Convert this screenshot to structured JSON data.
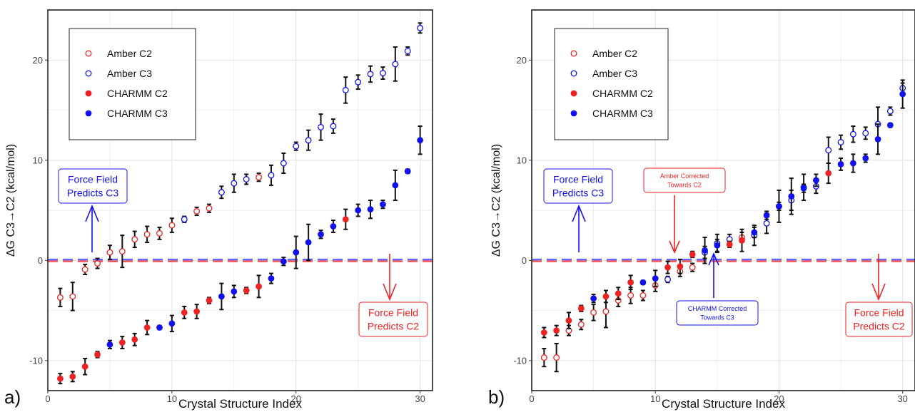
{
  "colors": {
    "amber": "#ee2222",
    "charmm_c2": "#ee2222",
    "charmm_c3": "#1111ee",
    "amber_c3": "#1111ee",
    "zero_line_red": "#ff5555",
    "zero_line_blue": "#6666ff",
    "grid": "#e4e4e4",
    "errorbar": "#111111"
  },
  "chart_data": [
    {
      "type": "scatter",
      "panel_label": "a)",
      "xlabel": "Crystal Structure Index",
      "ylabel": "ΔG C3→C2 (kcal/mol)",
      "xlim": [
        0,
        31
      ],
      "ylim": [
        -13,
        25
      ],
      "xticks": [
        0,
        10,
        20,
        30
      ],
      "yticks": [
        -10,
        0,
        10,
        20
      ],
      "grid": true,
      "legend": {
        "placement": "top-left",
        "entries": [
          {
            "label": "Amber C2",
            "marker": "open",
            "color": "#ee2222"
          },
          {
            "label": "Amber C3",
            "marker": "open",
            "color": "#1111ee"
          },
          {
            "label": "CHARMM C2",
            "marker": "filled",
            "color": "#ee2222"
          },
          {
            "label": "CHARMM C3",
            "marker": "filled",
            "color": "#1111ee"
          }
        ]
      },
      "reference_line_y": 0,
      "series": [
        {
          "name": "Amber C2",
          "marker": "open",
          "color": "#ee2222",
          "points": [
            [
              1,
              -3.7,
              0.9
            ],
            [
              2,
              -3.6,
              1.4
            ],
            [
              3,
              -0.9,
              0.5
            ],
            [
              4,
              -0.3,
              0.5
            ],
            [
              5,
              0.8,
              0.7
            ],
            [
              6,
              0.9,
              1.6
            ],
            [
              7,
              2.1,
              0.8
            ],
            [
              8,
              2.6,
              0.8
            ],
            [
              9,
              2.7,
              0.6
            ],
            [
              10,
              3.5,
              0.7
            ],
            [
              12,
              4.9,
              0.4
            ],
            [
              13,
              5.2,
              0.4
            ],
            [
              17,
              8.3,
              0.4
            ]
          ]
        },
        {
          "name": "Amber C3",
          "marker": "open",
          "color": "#1111ee",
          "points": [
            [
              11,
              4.1,
              0.3
            ],
            [
              14,
              6.8,
              0.6
            ],
            [
              15,
              7.7,
              0.9
            ],
            [
              16,
              8.1,
              0.5
            ],
            [
              18,
              8.5,
              1.0
            ],
            [
              19,
              9.7,
              1.0
            ],
            [
              20,
              11.4,
              0.4
            ],
            [
              21,
              12.0,
              1.0
            ],
            [
              22,
              13.3,
              1.3
            ],
            [
              23,
              13.4,
              0.7
            ],
            [
              24,
              17.0,
              1.3
            ],
            [
              25,
              17.8,
              0.7
            ],
            [
              26,
              18.6,
              0.8
            ],
            [
              27,
              18.7,
              0.6
            ],
            [
              28,
              19.6,
              1.7
            ],
            [
              29,
              20.9,
              0.4
            ],
            [
              30,
              23.2,
              0.5
            ]
          ]
        },
        {
          "name": "CHARMM C2",
          "marker": "filled",
          "color": "#ee2222",
          "points": [
            [
              1,
              -11.8,
              0.5
            ],
            [
              2,
              -11.6,
              0.5
            ],
            [
              3,
              -10.6,
              0.8
            ],
            [
              4,
              -9.4,
              0.3
            ],
            [
              6,
              -8.2,
              0.6
            ],
            [
              7,
              -7.9,
              0.6
            ],
            [
              8,
              -6.7,
              0.7
            ],
            [
              11,
              -5.2,
              0.6
            ],
            [
              12,
              -5.1,
              0.7
            ],
            [
              13,
              -4.0,
              0.3
            ],
            [
              16,
              -3.0,
              0.3
            ],
            [
              17,
              -2.6,
              1.1
            ],
            [
              24,
              4.1,
              1.0
            ]
          ]
        },
        {
          "name": "CHARMM C3",
          "marker": "filled",
          "color": "#1111ee",
          "points": [
            [
              5,
              -8.4,
              0.4
            ],
            [
              9,
              -6.7,
              0.2
            ],
            [
              10,
              -6.3,
              0.8
            ],
            [
              14,
              -3.6,
              1.3
            ],
            [
              15,
              -3.1,
              0.6
            ],
            [
              18,
              -1.8,
              0.5
            ],
            [
              19,
              -0.1,
              0.4
            ],
            [
              20,
              0.8,
              1.6
            ],
            [
              21,
              1.8,
              1.8
            ],
            [
              22,
              2.6,
              0.4
            ],
            [
              23,
              3.4,
              0.6
            ],
            [
              25,
              5.0,
              0.6
            ],
            [
              26,
              5.1,
              0.9
            ],
            [
              27,
              5.6,
              0.4
            ],
            [
              28,
              7.5,
              1.5
            ],
            [
              29,
              8.9,
              0.2
            ],
            [
              30,
              12.0,
              1.4
            ]
          ]
        }
      ],
      "annotations": [
        {
          "text": "Force Field\nPredicts C3",
          "color": "#1111ee",
          "anchor": "upper-left",
          "arrow": "up"
        },
        {
          "text": "Force Field\nPredicts C2",
          "color": "#ee2222",
          "anchor": "lower-right",
          "arrow": "down"
        }
      ]
    },
    {
      "type": "scatter",
      "panel_label": "b)",
      "xlabel": "Crystal Structure Index",
      "ylabel": "ΔG C3→C2 (kcal/mol)",
      "xlim": [
        0,
        31
      ],
      "ylim": [
        -13,
        25
      ],
      "xticks": [
        0,
        10,
        20,
        30
      ],
      "yticks": [
        -10,
        0,
        10,
        20
      ],
      "grid": true,
      "legend": {
        "placement": "top-left",
        "entries": [
          {
            "label": "Amber C2",
            "marker": "open",
            "color": "#ee2222"
          },
          {
            "label": "Amber C3",
            "marker": "open",
            "color": "#1111ee"
          },
          {
            "label": "CHARMM C2",
            "marker": "filled",
            "color": "#ee2222"
          },
          {
            "label": "CHARMM C3",
            "marker": "filled",
            "color": "#1111ee"
          }
        ]
      },
      "reference_line_y": 0,
      "series": [
        {
          "name": "Amber C2",
          "marker": "open",
          "color": "#ee2222",
          "points": [
            [
              1,
              -9.7,
              0.9
            ],
            [
              2,
              -9.7,
              1.4
            ],
            [
              3,
              -7.0,
              0.5
            ],
            [
              4,
              -6.4,
              0.5
            ],
            [
              5,
              -5.2,
              0.8
            ],
            [
              6,
              -5.1,
              1.6
            ],
            [
              7,
              -4.0,
              0.6
            ],
            [
              8,
              -3.5,
              0.8
            ],
            [
              9,
              -3.5,
              0.5
            ],
            [
              10,
              -2.5,
              0.6
            ],
            [
              12,
              -1.1,
              0.5
            ],
            [
              13,
              -0.7,
              0.4
            ],
            [
              17,
              2.3,
              0.5
            ]
          ]
        },
        {
          "name": "Amber C3",
          "marker": "open",
          "color": "#1111ee",
          "points": [
            [
              11,
              -1.9,
              0.3
            ],
            [
              14,
              0.8,
              0.6
            ],
            [
              15,
              1.7,
              0.9
            ],
            [
              16,
              2.1,
              0.5
            ],
            [
              18,
              2.5,
              1.0
            ],
            [
              19,
              3.7,
              1.0
            ],
            [
              20,
              5.4,
              0.4
            ],
            [
              21,
              6.0,
              1.0
            ],
            [
              22,
              7.3,
              1.3
            ],
            [
              23,
              7.4,
              0.7
            ],
            [
              24,
              11.0,
              1.3
            ],
            [
              25,
              11.8,
              0.7
            ],
            [
              26,
              12.6,
              0.8
            ],
            [
              27,
              12.7,
              0.6
            ],
            [
              28,
              13.6,
              1.7
            ],
            [
              29,
              14.9,
              0.4
            ],
            [
              30,
              17.2,
              0.5
            ]
          ]
        },
        {
          "name": "CHARMM C2",
          "marker": "filled",
          "color": "#ee2222",
          "points": [
            [
              1,
              -7.2,
              0.5
            ],
            [
              2,
              -7.0,
              0.5
            ],
            [
              3,
              -6.0,
              0.8
            ],
            [
              4,
              -4.8,
              0.3
            ],
            [
              6,
              -3.6,
              0.6
            ],
            [
              7,
              -3.3,
              0.6
            ],
            [
              8,
              -2.2,
              0.7
            ],
            [
              11,
              -0.7,
              0.6
            ],
            [
              12,
              -0.6,
              0.7
            ],
            [
              13,
              0.6,
              0.3
            ],
            [
              16,
              1.6,
              0.3
            ],
            [
              17,
              2.0,
              1.1
            ],
            [
              24,
              8.7,
              1.0
            ]
          ]
        },
        {
          "name": "CHARMM C3",
          "marker": "filled",
          "color": "#1111ee",
          "points": [
            [
              5,
              -3.8,
              0.4
            ],
            [
              9,
              -2.2,
              0.2
            ],
            [
              10,
              -1.8,
              0.8
            ],
            [
              14,
              1.0,
              1.3
            ],
            [
              15,
              1.5,
              0.6
            ],
            [
              18,
              2.8,
              0.5
            ],
            [
              19,
              4.5,
              0.4
            ],
            [
              20,
              5.4,
              1.6
            ],
            [
              21,
              6.4,
              1.8
            ],
            [
              22,
              7.2,
              0.4
            ],
            [
              23,
              8.0,
              0.6
            ],
            [
              25,
              9.6,
              0.6
            ],
            [
              26,
              9.7,
              0.9
            ],
            [
              27,
              10.2,
              0.4
            ],
            [
              28,
              12.1,
              1.5
            ],
            [
              29,
              13.5,
              0.2
            ],
            [
              30,
              16.6,
              1.4
            ]
          ]
        }
      ],
      "annotations": [
        {
          "text": "Force Field\nPredicts C3",
          "color": "#1111ee",
          "anchor": "upper-left",
          "arrow": "up"
        },
        {
          "text": "Force Field\nPredicts C2",
          "color": "#ee2222",
          "anchor": "lower-right",
          "arrow": "down"
        },
        {
          "text": "Amber Corrected\nTowards C2",
          "color": "#ee2222",
          "anchor": "upper-middle",
          "arrow": "down"
        },
        {
          "text": "CHARMM Corrected\nTowards C3",
          "color": "#1111ee",
          "anchor": "lower-middle",
          "arrow": "up"
        }
      ]
    }
  ]
}
